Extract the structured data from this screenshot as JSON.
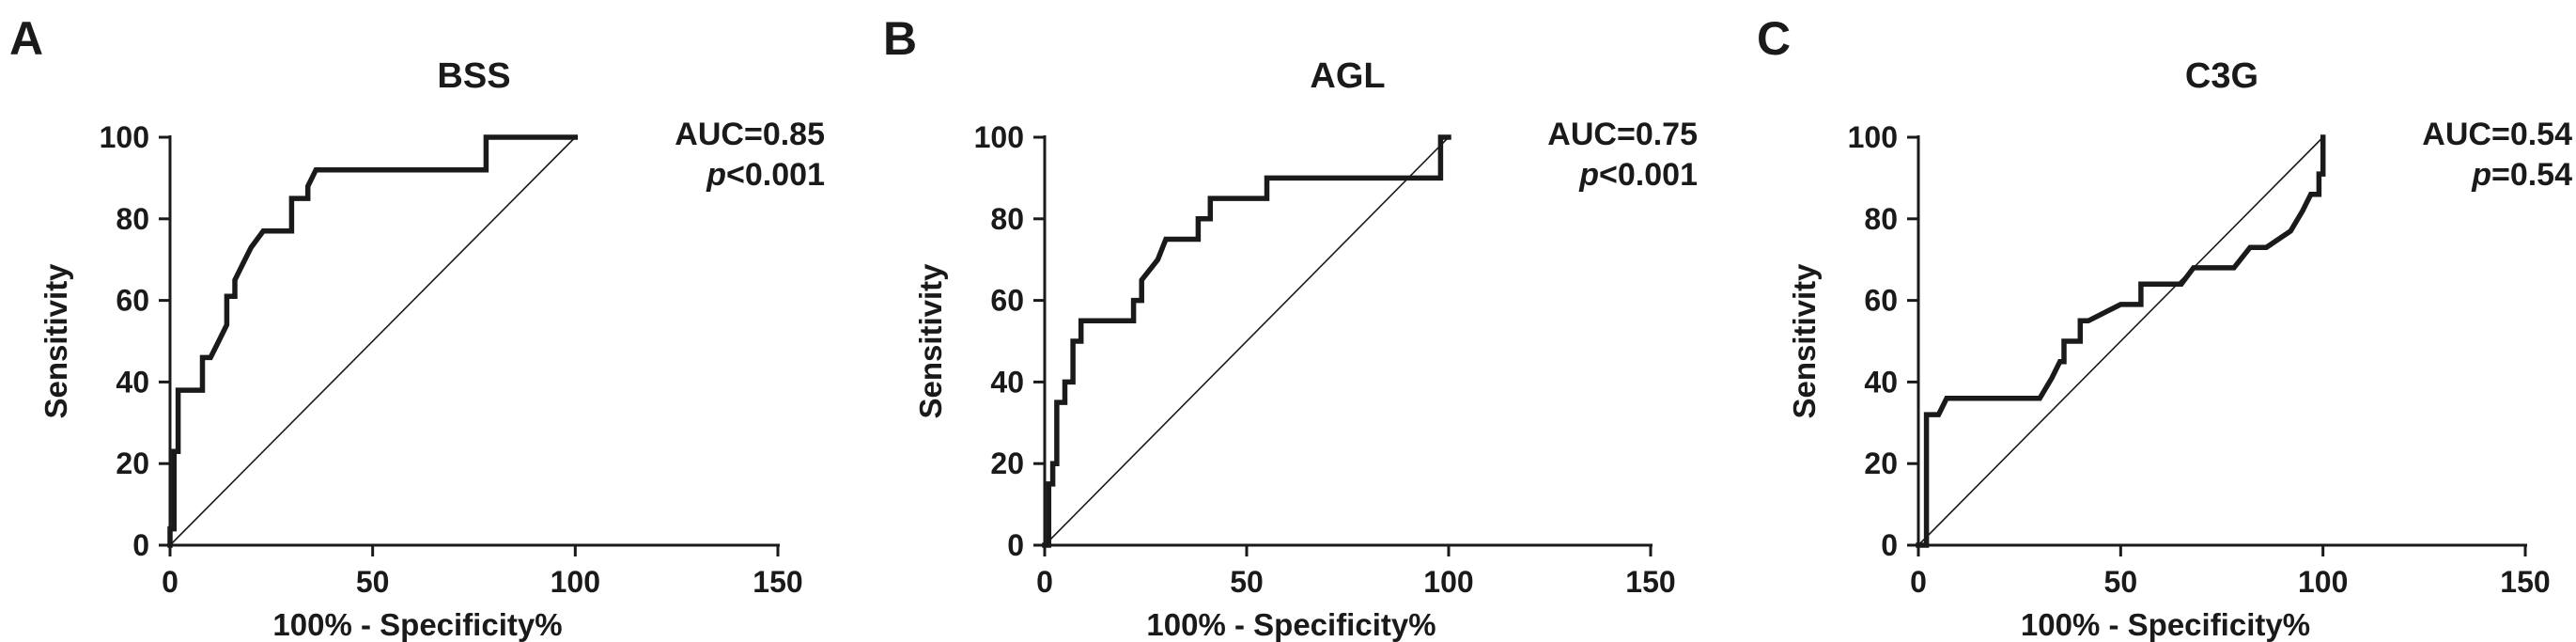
{
  "chart_data": [
    {
      "type": "line",
      "panel": "A",
      "title": "BSS",
      "xlabel": "100% - Specificity%",
      "ylabel": "Sensitivity",
      "xlim": [
        0,
        150
      ],
      "ylim": [
        0,
        100
      ],
      "xticks": [
        "0",
        "50",
        "100",
        "150"
      ],
      "yticks": [
        "0",
        "20",
        "40",
        "60",
        "80",
        "100"
      ],
      "auc_text": "AUC=0.85",
      "p_symbol": "p",
      "p_rest": "<0.001",
      "series": [
        {
          "x": [
            0,
            0,
            1,
            1,
            2,
            2,
            8,
            8,
            10,
            12,
            14,
            14,
            16,
            16,
            18,
            20,
            23,
            26,
            30,
            30,
            34,
            34,
            36,
            40,
            50,
            60,
            70,
            78,
            78,
            88,
            100
          ],
          "y": [
            0,
            4,
            4,
            23,
            23,
            38,
            38,
            46,
            46,
            50,
            54,
            61,
            61,
            65,
            69,
            73,
            77,
            77,
            77,
            85,
            85,
            88,
            92,
            92,
            92,
            92,
            92,
            92,
            100,
            100,
            100
          ]
        }
      ],
      "reference_line": {
        "x": [
          0,
          100
        ],
        "y": [
          0,
          100
        ]
      }
    },
    {
      "type": "line",
      "panel": "B",
      "title": "AGL",
      "xlabel": "100% - Specificity%",
      "ylabel": "Sensitivity",
      "xlim": [
        0,
        150
      ],
      "ylim": [
        0,
        100
      ],
      "xticks": [
        "0",
        "50",
        "100",
        "150"
      ],
      "yticks": [
        "0",
        "20",
        "40",
        "60",
        "80",
        "100"
      ],
      "auc_text": "AUC=0.75",
      "p_symbol": "p",
      "p_rest": "<0.001",
      "series": [
        {
          "x": [
            0,
            1,
            1,
            2,
            2,
            3,
            3,
            5,
            5,
            7,
            7,
            9,
            9,
            12,
            20,
            22,
            22,
            24,
            24,
            28,
            30,
            34,
            38,
            38,
            41,
            41,
            55,
            55,
            70,
            85,
            98,
            98,
            100
          ],
          "y": [
            0,
            0,
            15,
            15,
            20,
            20,
            35,
            35,
            40,
            40,
            50,
            50,
            55,
            55,
            55,
            55,
            60,
            60,
            65,
            70,
            75,
            75,
            75,
            80,
            80,
            85,
            85,
            90,
            90,
            90,
            90,
            100,
            100
          ]
        }
      ],
      "reference_line": {
        "x": [
          0,
          100
        ],
        "y": [
          0,
          100
        ]
      }
    },
    {
      "type": "line",
      "panel": "C",
      "title": "C3G",
      "xlabel": "100% - Specificity%",
      "ylabel": "Sensitivity",
      "xlim": [
        0,
        150
      ],
      "ylim": [
        0,
        100
      ],
      "xticks": [
        "0",
        "50",
        "100",
        "150"
      ],
      "yticks": [
        "0",
        "20",
        "40",
        "60",
        "80",
        "100"
      ],
      "auc_text": "AUC=0.54",
      "p_symbol": "p",
      "p_rest": "=0.54",
      "series": [
        {
          "x": [
            0,
            2,
            2,
            5,
            7,
            15,
            30,
            33,
            35,
            36,
            36,
            40,
            40,
            42,
            46,
            50,
            55,
            55,
            60,
            65,
            68,
            72,
            78,
            82,
            86,
            86,
            92,
            92,
            95,
            95,
            97,
            97,
            99,
            99,
            100,
            100
          ],
          "y": [
            0,
            0,
            32,
            32,
            36,
            36,
            36,
            41,
            45,
            45,
            50,
            50,
            55,
            55,
            57,
            59,
            59,
            64,
            64,
            64,
            68,
            68,
            68,
            73,
            73,
            73,
            77,
            77,
            82,
            82,
            86,
            86,
            86,
            91,
            91,
            100
          ]
        }
      ],
      "reference_line": {
        "x": [
          0,
          100
        ],
        "y": [
          0,
          100
        ]
      }
    }
  ]
}
